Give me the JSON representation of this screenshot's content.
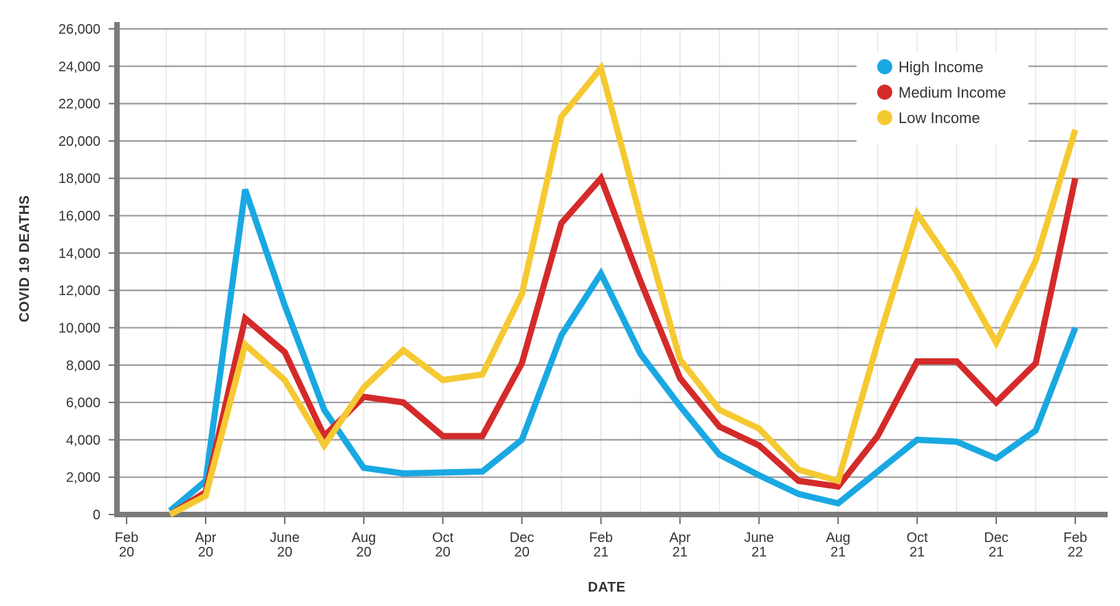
{
  "chart_data": {
    "type": "line",
    "title": "",
    "xlabel": "DATE",
    "ylabel": "COVID 19 DEATHS",
    "ylim": [
      0,
      26000
    ],
    "y_ticks": [
      "0",
      "2,000",
      "4,000",
      "6,000",
      "8,000",
      "10,000",
      "12,000",
      "14,000",
      "16,000",
      "18,000",
      "20,000",
      "22,000",
      "24,000",
      "26,000"
    ],
    "x_ticks": [
      {
        "month": "Feb",
        "year": "20",
        "index": 0
      },
      {
        "month": "Apr",
        "year": "20",
        "index": 2
      },
      {
        "month": "June",
        "year": "20",
        "index": 4
      },
      {
        "month": "Aug",
        "year": "20",
        "index": 6
      },
      {
        "month": "Oct",
        "year": "20",
        "index": 8
      },
      {
        "month": "Dec",
        "year": "20",
        "index": 10
      },
      {
        "month": "Feb",
        "year": "21",
        "index": 12
      },
      {
        "month": "Apr",
        "year": "21",
        "index": 14
      },
      {
        "month": "June",
        "year": "21",
        "index": 16
      },
      {
        "month": "Aug",
        "year": "21",
        "index": 18
      },
      {
        "month": "Oct",
        "year": "21",
        "index": 20
      },
      {
        "month": "Dec",
        "year": "21",
        "index": 22
      },
      {
        "month": "Feb",
        "year": "22",
        "index": 24
      }
    ],
    "x_range": [
      0,
      24
    ],
    "x_points": [
      1.1,
      2,
      3,
      4,
      5,
      6,
      7,
      8,
      9,
      10,
      11,
      12,
      13,
      14,
      15,
      16,
      17,
      18,
      19,
      20,
      21,
      22,
      23,
      24
    ],
    "legend_position": "top-right",
    "series": [
      {
        "name": "High Income",
        "color": "#19A8E2",
        "values": [
          200,
          1800,
          17400,
          11200,
          5600,
          2500,
          2200,
          2250,
          2300,
          4000,
          9600,
          12900,
          8600,
          5800,
          3200,
          2100,
          1100,
          600,
          2300,
          4000,
          3900,
          3000,
          4500,
          10000
        ]
      },
      {
        "name": "Medium Income",
        "color": "#D42A2A",
        "values": [
          0,
          1200,
          10500,
          8700,
          4200,
          6300,
          6000,
          4200,
          4200,
          8100,
          15600,
          18000,
          12500,
          7300,
          4700,
          3700,
          1800,
          1500,
          4200,
          8200,
          8200,
          6000,
          8100,
          18000
        ]
      },
      {
        "name": "Low Income",
        "color": "#F5C932",
        "values": [
          0,
          1000,
          9100,
          7200,
          3700,
          6800,
          8800,
          7200,
          7500,
          11800,
          21300,
          23900,
          15900,
          8300,
          5600,
          4600,
          2400,
          1800,
          9200,
          16100,
          13000,
          9200,
          13600,
          20600
        ]
      }
    ]
  }
}
